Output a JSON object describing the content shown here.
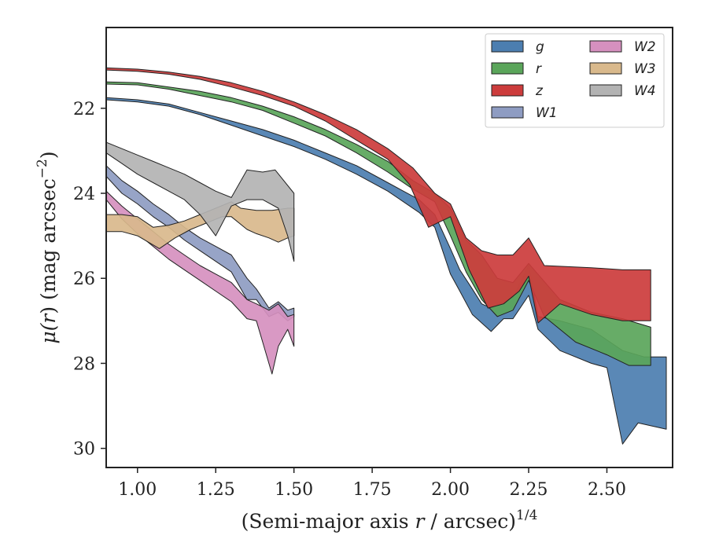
{
  "chart_data": {
    "type": "area",
    "xlabel_main": "(Semi-major axis ",
    "xlabel_var": "r",
    "xlabel_tail": " / arcsec)",
    "xlabel_exp": "1/4",
    "ylabel_main": "μ(",
    "ylabel_var": "r",
    "ylabel_tail": ") (mag arcsec",
    "ylabel_exp": "−2",
    "ylabel_close": ")",
    "xlim": [
      0.9,
      2.71
    ],
    "ylim": [
      30.45,
      20.1
    ],
    "y_inverted": true,
    "x_ticks": [
      1.0,
      1.25,
      1.5,
      1.75,
      2.0,
      2.25,
      2.5
    ],
    "x_tick_labels": [
      "1.00",
      "1.25",
      "1.50",
      "1.75",
      "2.00",
      "2.25",
      "2.50"
    ],
    "y_ticks": [
      22,
      24,
      26,
      28,
      30
    ],
    "y_tick_labels": [
      "22",
      "24",
      "26",
      "28",
      "30"
    ],
    "grid": false,
    "legend_position": "top-right",
    "legend_columns": 2,
    "series": [
      {
        "name": "g",
        "color": "#4c7eb0",
        "upper": [
          [
            0.9,
            21.75
          ],
          [
            1.0,
            21.8
          ],
          [
            1.1,
            21.9
          ],
          [
            1.2,
            22.1
          ],
          [
            1.3,
            22.3
          ],
          [
            1.4,
            22.5
          ],
          [
            1.5,
            22.75
          ],
          [
            1.6,
            23.05
          ],
          [
            1.7,
            23.35
          ],
          [
            1.8,
            23.75
          ],
          [
            1.9,
            24.15
          ],
          [
            1.95,
            24.5
          ],
          [
            2.0,
            25.3
          ],
          [
            2.03,
            25.8
          ],
          [
            2.07,
            26.25
          ],
          [
            2.1,
            26.6
          ],
          [
            2.13,
            26.7
          ],
          [
            2.17,
            26.55
          ],
          [
            2.2,
            26.45
          ],
          [
            2.25,
            25.7
          ],
          [
            2.28,
            26.9
          ],
          [
            2.35,
            27.0
          ],
          [
            2.45,
            27.2
          ],
          [
            2.55,
            27.7
          ],
          [
            2.62,
            27.85
          ],
          [
            2.69,
            27.85
          ]
        ],
        "lower": [
          [
            0.9,
            21.8
          ],
          [
            1.0,
            21.85
          ],
          [
            1.1,
            21.95
          ],
          [
            1.2,
            22.15
          ],
          [
            1.3,
            22.4
          ],
          [
            1.4,
            22.65
          ],
          [
            1.5,
            22.9
          ],
          [
            1.6,
            23.2
          ],
          [
            1.7,
            23.55
          ],
          [
            1.8,
            23.95
          ],
          [
            1.9,
            24.45
          ],
          [
            1.95,
            24.8
          ],
          [
            2.0,
            25.9
          ],
          [
            2.03,
            26.3
          ],
          [
            2.07,
            26.85
          ],
          [
            2.1,
            27.05
          ],
          [
            2.13,
            27.25
          ],
          [
            2.17,
            26.95
          ],
          [
            2.2,
            26.95
          ],
          [
            2.25,
            26.4
          ],
          [
            2.28,
            27.2
          ],
          [
            2.35,
            27.7
          ],
          [
            2.45,
            28.0
          ],
          [
            2.5,
            28.1
          ],
          [
            2.55,
            29.9
          ],
          [
            2.6,
            29.4
          ],
          [
            2.69,
            29.55
          ]
        ]
      },
      {
        "name": "r",
        "color": "#5aa55a",
        "upper": [
          [
            0.9,
            21.38
          ],
          [
            1.0,
            21.4
          ],
          [
            1.1,
            21.5
          ],
          [
            1.2,
            21.6
          ],
          [
            1.3,
            21.75
          ],
          [
            1.4,
            21.95
          ],
          [
            1.5,
            22.2
          ],
          [
            1.6,
            22.5
          ],
          [
            1.7,
            22.85
          ],
          [
            1.8,
            23.25
          ],
          [
            1.88,
            23.7
          ],
          [
            1.95,
            24.0
          ],
          [
            2.0,
            24.35
          ],
          [
            2.05,
            25.1
          ],
          [
            2.1,
            25.45
          ],
          [
            2.15,
            26.0
          ],
          [
            2.2,
            26.1
          ],
          [
            2.25,
            25.65
          ],
          [
            2.35,
            26.5
          ],
          [
            2.45,
            26.8
          ],
          [
            2.55,
            26.95
          ],
          [
            2.64,
            27.15
          ]
        ],
        "lower": [
          [
            0.9,
            21.43
          ],
          [
            1.0,
            21.45
          ],
          [
            1.1,
            21.55
          ],
          [
            1.2,
            21.7
          ],
          [
            1.3,
            21.85
          ],
          [
            1.4,
            22.05
          ],
          [
            1.5,
            22.35
          ],
          [
            1.6,
            22.65
          ],
          [
            1.7,
            23.05
          ],
          [
            1.8,
            23.5
          ],
          [
            1.88,
            23.9
          ],
          [
            1.95,
            24.2
          ],
          [
            2.0,
            25.0
          ],
          [
            2.05,
            25.85
          ],
          [
            2.1,
            26.5
          ],
          [
            2.15,
            26.9
          ],
          [
            2.2,
            26.75
          ],
          [
            2.25,
            26.05
          ],
          [
            2.3,
            26.9
          ],
          [
            2.4,
            27.5
          ],
          [
            2.5,
            27.8
          ],
          [
            2.57,
            28.05
          ],
          [
            2.64,
            28.05
          ]
        ]
      },
      {
        "name": "z",
        "color": "#cc3c3c",
        "upper": [
          [
            0.9,
            21.05
          ],
          [
            1.0,
            21.08
          ],
          [
            1.1,
            21.15
          ],
          [
            1.2,
            21.25
          ],
          [
            1.3,
            21.4
          ],
          [
            1.4,
            21.6
          ],
          [
            1.5,
            21.85
          ],
          [
            1.6,
            22.15
          ],
          [
            1.7,
            22.5
          ],
          [
            1.8,
            22.95
          ],
          [
            1.88,
            23.4
          ],
          [
            1.95,
            24.0
          ],
          [
            2.0,
            24.25
          ],
          [
            2.05,
            25.05
          ],
          [
            2.1,
            25.35
          ],
          [
            2.15,
            25.45
          ],
          [
            2.2,
            25.45
          ],
          [
            2.25,
            25.05
          ],
          [
            2.3,
            25.7
          ],
          [
            2.45,
            25.75
          ],
          [
            2.55,
            25.8
          ],
          [
            2.64,
            25.8
          ]
        ],
        "lower": [
          [
            0.9,
            21.1
          ],
          [
            1.0,
            21.13
          ],
          [
            1.1,
            21.2
          ],
          [
            1.2,
            21.32
          ],
          [
            1.3,
            21.5
          ],
          [
            1.4,
            21.7
          ],
          [
            1.5,
            21.95
          ],
          [
            1.6,
            22.3
          ],
          [
            1.7,
            22.75
          ],
          [
            1.8,
            23.2
          ],
          [
            1.87,
            23.8
          ],
          [
            1.93,
            24.8
          ],
          [
            2.0,
            24.55
          ],
          [
            2.06,
            25.8
          ],
          [
            2.12,
            26.7
          ],
          [
            2.17,
            26.6
          ],
          [
            2.22,
            26.3
          ],
          [
            2.25,
            25.95
          ],
          [
            2.28,
            27.05
          ],
          [
            2.35,
            26.6
          ],
          [
            2.45,
            26.85
          ],
          [
            2.55,
            27.0
          ],
          [
            2.64,
            27.0
          ]
        ]
      },
      {
        "name": "W1",
        "color": "#8e9cc2",
        "upper": [
          [
            0.9,
            23.35
          ],
          [
            0.95,
            23.7
          ],
          [
            1.0,
            23.95
          ],
          [
            1.05,
            24.25
          ],
          [
            1.1,
            24.5
          ],
          [
            1.15,
            24.8
          ],
          [
            1.2,
            25.05
          ],
          [
            1.25,
            25.25
          ],
          [
            1.3,
            25.45
          ],
          [
            1.35,
            26.0
          ],
          [
            1.38,
            26.25
          ],
          [
            1.42,
            26.7
          ],
          [
            1.45,
            26.55
          ],
          [
            1.48,
            26.75
          ],
          [
            1.5,
            26.7
          ]
        ],
        "lower": [
          [
            0.9,
            23.6
          ],
          [
            0.95,
            24.0
          ],
          [
            1.0,
            24.25
          ],
          [
            1.05,
            24.55
          ],
          [
            1.1,
            24.8
          ],
          [
            1.15,
            25.1
          ],
          [
            1.2,
            25.35
          ],
          [
            1.25,
            25.6
          ],
          [
            1.3,
            25.85
          ],
          [
            1.35,
            26.5
          ],
          [
            1.38,
            26.5
          ],
          [
            1.42,
            26.9
          ],
          [
            1.45,
            26.8
          ],
          [
            1.48,
            27.0
          ],
          [
            1.5,
            26.9
          ]
        ]
      },
      {
        "name": "W2",
        "color": "#d690bf",
        "upper": [
          [
            0.9,
            23.95
          ],
          [
            0.95,
            24.3
          ],
          [
            1.0,
            24.6
          ],
          [
            1.05,
            24.9
          ],
          [
            1.1,
            25.2
          ],
          [
            1.15,
            25.45
          ],
          [
            1.2,
            25.7
          ],
          [
            1.25,
            25.9
          ],
          [
            1.3,
            26.1
          ],
          [
            1.35,
            26.5
          ],
          [
            1.38,
            26.6
          ],
          [
            1.42,
            26.75
          ],
          [
            1.45,
            26.6
          ],
          [
            1.48,
            26.9
          ],
          [
            1.5,
            26.85
          ]
        ],
        "lower": [
          [
            0.9,
            24.15
          ],
          [
            0.95,
            24.6
          ],
          [
            1.0,
            24.95
          ],
          [
            1.05,
            25.25
          ],
          [
            1.1,
            25.55
          ],
          [
            1.15,
            25.8
          ],
          [
            1.2,
            26.05
          ],
          [
            1.25,
            26.3
          ],
          [
            1.3,
            26.55
          ],
          [
            1.35,
            26.95
          ],
          [
            1.38,
            27.0
          ],
          [
            1.4,
            27.5
          ],
          [
            1.43,
            28.25
          ],
          [
            1.45,
            27.6
          ],
          [
            1.48,
            27.2
          ],
          [
            1.5,
            27.6
          ]
        ]
      },
      {
        "name": "W3",
        "color": "#d9b98c",
        "upper": [
          [
            0.9,
            24.5
          ],
          [
            0.95,
            24.5
          ],
          [
            1.0,
            24.55
          ],
          [
            1.05,
            24.8
          ],
          [
            1.1,
            24.75
          ],
          [
            1.15,
            24.65
          ],
          [
            1.2,
            24.5
          ],
          [
            1.25,
            24.35
          ],
          [
            1.3,
            24.2
          ],
          [
            1.33,
            24.35
          ],
          [
            1.38,
            24.4
          ],
          [
            1.43,
            24.4
          ],
          [
            1.48,
            24.35
          ],
          [
            1.5,
            24.35
          ]
        ],
        "lower": [
          [
            0.9,
            24.9
          ],
          [
            0.95,
            24.9
          ],
          [
            1.0,
            25.0
          ],
          [
            1.07,
            25.3
          ],
          [
            1.12,
            25.05
          ],
          [
            1.17,
            24.85
          ],
          [
            1.22,
            24.7
          ],
          [
            1.27,
            24.55
          ],
          [
            1.3,
            24.55
          ],
          [
            1.35,
            24.85
          ],
          [
            1.38,
            24.95
          ],
          [
            1.42,
            25.05
          ],
          [
            1.45,
            25.15
          ],
          [
            1.48,
            25.05
          ],
          [
            1.5,
            25.0
          ]
        ]
      },
      {
        "name": "W4",
        "color": "#b3b3b3",
        "upper": [
          [
            0.9,
            22.8
          ],
          [
            0.95,
            22.95
          ],
          [
            1.0,
            23.1
          ],
          [
            1.05,
            23.25
          ],
          [
            1.1,
            23.4
          ],
          [
            1.15,
            23.55
          ],
          [
            1.2,
            23.75
          ],
          [
            1.25,
            23.95
          ],
          [
            1.3,
            24.1
          ],
          [
            1.35,
            23.45
          ],
          [
            1.4,
            23.5
          ],
          [
            1.44,
            23.45
          ],
          [
            1.5,
            24.0
          ]
        ],
        "lower": [
          [
            0.9,
            23.05
          ],
          [
            0.95,
            23.3
          ],
          [
            1.0,
            23.55
          ],
          [
            1.05,
            23.75
          ],
          [
            1.1,
            23.95
          ],
          [
            1.15,
            24.15
          ],
          [
            1.2,
            24.5
          ],
          [
            1.25,
            25.0
          ],
          [
            1.3,
            24.3
          ],
          [
            1.35,
            24.15
          ],
          [
            1.4,
            24.15
          ],
          [
            1.45,
            24.35
          ],
          [
            1.48,
            25.0
          ],
          [
            1.5,
            25.6
          ]
        ]
      }
    ]
  }
}
